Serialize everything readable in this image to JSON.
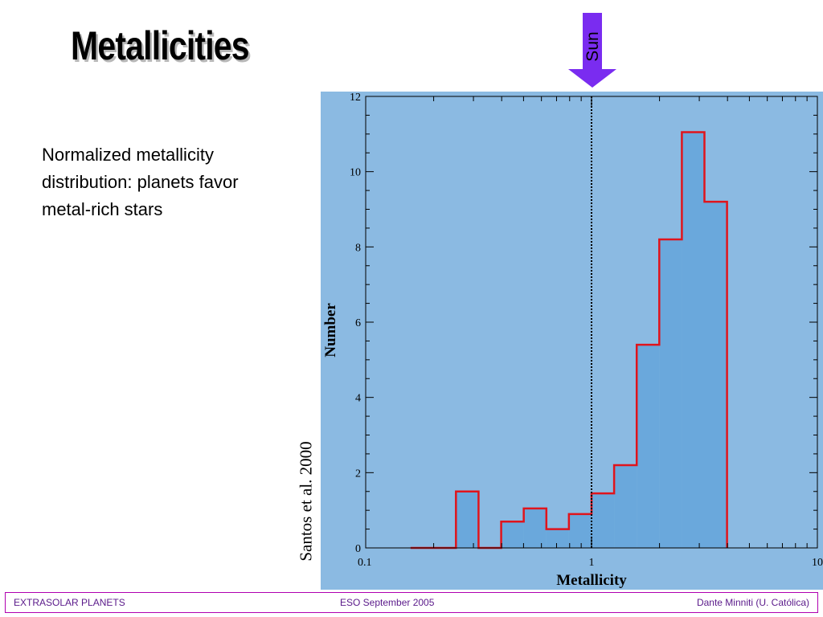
{
  "slide": {
    "title": "Metallicities",
    "description": "Normalized metallicity distribution: planets favor metal-rich stars",
    "sun_label": "Sun",
    "credit": "Santos et al. 2000",
    "colors": {
      "arrow": "#7a2cf0",
      "panel": "#8bbae2",
      "fill": "#6aa8dc",
      "step": "#e0141c"
    }
  },
  "footer": {
    "left": "EXTRASOLAR PLANETS",
    "center": "ESO  September 2005",
    "right": "Dante Minniti (U. Católica)"
  },
  "chart_data": {
    "type": "bar",
    "xscale": "log",
    "xlim": [
      0.1,
      10
    ],
    "ylim": [
      0,
      12
    ],
    "xlabel": "Metallicity",
    "ylabel": "Number",
    "xtick_labels": [
      "0.1",
      "1",
      "10"
    ],
    "ytick_labels": [
      "0",
      "2",
      "4",
      "6",
      "8",
      "10",
      "12"
    ],
    "reference_line": {
      "x": 1,
      "label": "Sun"
    },
    "bin_edges": [
      0.158,
      0.251,
      0.316,
      0.398,
      0.501,
      0.631,
      0.794,
      1.0,
      1.259,
      1.585,
      1.995,
      2.512,
      3.162,
      3.981
    ],
    "values": [
      0,
      1.5,
      0,
      0.7,
      1.05,
      0.5,
      0.9,
      1.45,
      2.2,
      5.4,
      8.2,
      11.05,
      9.2
    ],
    "grid": false
  }
}
